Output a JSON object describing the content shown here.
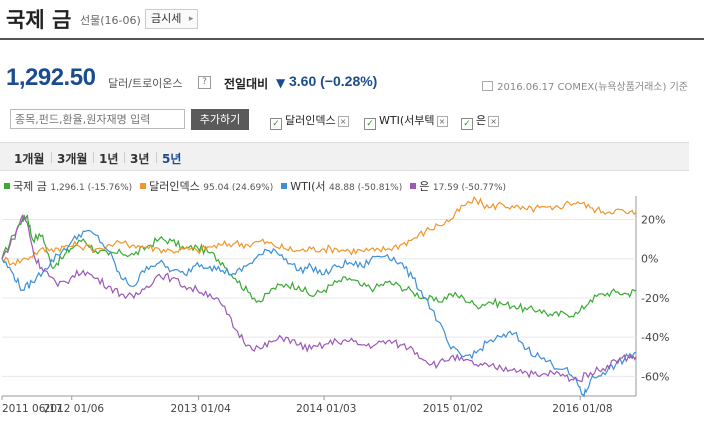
{
  "header": {
    "title": "국제 금",
    "subtitle": "선물(16-06)",
    "button_label": "금시세"
  },
  "quote": {
    "price": "1,292.50",
    "unit": "달러/트로이온스",
    "help": "?",
    "change_label": "전일대비",
    "change_value": "3.60 (−0.28%)",
    "date_note": "2016.06.17 COMEX(뉴욕상품거래소) 기준"
  },
  "compare": {
    "search_placeholder": "종목,펀드,환율,원자재명 입력",
    "add_label": "추가하기",
    "items": [
      "달러인덱스",
      "WTI(서부텍",
      "은"
    ]
  },
  "periods": [
    "1개월",
    "3개월",
    "1년",
    "3년",
    "5년"
  ],
  "active_period": "5년",
  "legend": [
    {
      "name": "국제 금",
      "value": "1,296.1 (-15.76%)",
      "color": "#3aaa35"
    },
    {
      "name": "달러인덱스",
      "value": "95.04 (24.69%)",
      "color": "#f0962a"
    },
    {
      "name": "WTI(서",
      "value": "48.88 (-50.81%)",
      "color": "#3d8fd6"
    },
    {
      "name": "은",
      "value": "17.59 (-50.77%)",
      "color": "#9b59b6"
    }
  ],
  "chart_data": {
    "type": "line",
    "x_ticks": [
      "2011 06/17",
      "2012 01/06",
      "2013 01/04",
      "2014 01/03",
      "2015 01/02",
      "2016 01/08"
    ],
    "y_ticks": [
      "20%",
      "0%",
      "-20%",
      "-40%",
      "-60%"
    ],
    "y_values": [
      20,
      0,
      -20,
      -40,
      -60
    ],
    "ylim": [
      -70,
      32
    ],
    "series": [
      {
        "name": "국제 금",
        "color": "#3aaa35",
        "points": [
          [
            2011.46,
            0
          ],
          [
            2011.55,
            12
          ],
          [
            2011.62,
            20
          ],
          [
            2011.66,
            22
          ],
          [
            2011.7,
            10
          ],
          [
            2011.78,
            12
          ],
          [
            2011.85,
            -4
          ],
          [
            2011.93,
            0
          ],
          [
            2012.0,
            5
          ],
          [
            2012.1,
            10
          ],
          [
            2012.2,
            4
          ],
          [
            2012.3,
            2
          ],
          [
            2012.4,
            3
          ],
          [
            2012.5,
            2
          ],
          [
            2012.6,
            6
          ],
          [
            2012.7,
            10
          ],
          [
            2012.8,
            9
          ],
          [
            2012.9,
            5
          ],
          [
            2013.0,
            6
          ],
          [
            2013.1,
            3
          ],
          [
            2013.2,
            -2
          ],
          [
            2013.3,
            -10
          ],
          [
            2013.4,
            -17
          ],
          [
            2013.5,
            -22
          ],
          [
            2013.6,
            -15
          ],
          [
            2013.7,
            -13
          ],
          [
            2013.8,
            -14
          ],
          [
            2013.9,
            -19
          ],
          [
            2014.0,
            -16
          ],
          [
            2014.1,
            -12
          ],
          [
            2014.2,
            -10
          ],
          [
            2014.3,
            -14
          ],
          [
            2014.4,
            -15
          ],
          [
            2014.5,
            -12
          ],
          [
            2014.6,
            -14
          ],
          [
            2014.7,
            -17
          ],
          [
            2014.8,
            -20
          ],
          [
            2014.9,
            -22
          ],
          [
            2015.0,
            -18
          ],
          [
            2015.1,
            -20
          ],
          [
            2015.2,
            -24
          ],
          [
            2015.3,
            -22
          ],
          [
            2015.4,
            -23
          ],
          [
            2015.5,
            -24
          ],
          [
            2015.6,
            -26
          ],
          [
            2015.7,
            -26
          ],
          [
            2015.8,
            -29
          ],
          [
            2015.9,
            -28
          ],
          [
            2016.0,
            -28
          ],
          [
            2016.1,
            -21
          ],
          [
            2016.2,
            -18
          ],
          [
            2016.3,
            -17
          ],
          [
            2016.4,
            -18
          ],
          [
            2016.46,
            -16
          ]
        ]
      },
      {
        "name": "달러인덱스",
        "color": "#f0962a",
        "points": [
          [
            2011.46,
            0
          ],
          [
            2011.55,
            -2
          ],
          [
            2011.65,
            0
          ],
          [
            2011.75,
            4
          ],
          [
            2011.85,
            5
          ],
          [
            2011.95,
            6
          ],
          [
            2012.05,
            7
          ],
          [
            2012.2,
            5
          ],
          [
            2012.4,
            8
          ],
          [
            2012.5,
            7
          ],
          [
            2012.6,
            6
          ],
          [
            2012.7,
            5
          ],
          [
            2012.8,
            4
          ],
          [
            2012.9,
            5
          ],
          [
            2013.0,
            4
          ],
          [
            2013.1,
            6
          ],
          [
            2013.2,
            7
          ],
          [
            2013.3,
            8
          ],
          [
            2013.4,
            7
          ],
          [
            2013.5,
            9
          ],
          [
            2013.6,
            7
          ],
          [
            2013.7,
            5
          ],
          [
            2013.8,
            4
          ],
          [
            2013.9,
            5
          ],
          [
            2014.0,
            5
          ],
          [
            2014.1,
            5
          ],
          [
            2014.2,
            4
          ],
          [
            2014.3,
            4
          ],
          [
            2014.4,
            4
          ],
          [
            2014.5,
            5
          ],
          [
            2014.6,
            7
          ],
          [
            2014.7,
            10
          ],
          [
            2014.8,
            14
          ],
          [
            2014.9,
            17
          ],
          [
            2015.0,
            20
          ],
          [
            2015.1,
            27
          ],
          [
            2015.2,
            30
          ],
          [
            2015.3,
            26
          ],
          [
            2015.4,
            28
          ],
          [
            2015.5,
            26
          ],
          [
            2015.6,
            25
          ],
          [
            2015.7,
            26
          ],
          [
            2015.8,
            25
          ],
          [
            2015.9,
            28
          ],
          [
            2016.0,
            29
          ],
          [
            2016.1,
            26
          ],
          [
            2016.2,
            24
          ],
          [
            2016.3,
            25
          ],
          [
            2016.4,
            23
          ],
          [
            2016.46,
            24
          ]
        ]
      },
      {
        "name": "WTI(서",
        "color": "#3d8fd6",
        "points": [
          [
            2011.46,
            0
          ],
          [
            2011.55,
            -8
          ],
          [
            2011.62,
            -16
          ],
          [
            2011.7,
            -12
          ],
          [
            2011.8,
            -5
          ],
          [
            2011.9,
            2
          ],
          [
            2012.0,
            8
          ],
          [
            2012.1,
            14
          ],
          [
            2012.2,
            12
          ],
          [
            2012.3,
            4
          ],
          [
            2012.4,
            -10
          ],
          [
            2012.5,
            -14
          ],
          [
            2012.6,
            -4
          ],
          [
            2012.7,
            -2
          ],
          [
            2012.8,
            -6
          ],
          [
            2012.9,
            -8
          ],
          [
            2013.0,
            -2
          ],
          [
            2013.1,
            -4
          ],
          [
            2013.2,
            -6
          ],
          [
            2013.3,
            -8
          ],
          [
            2013.4,
            -3
          ],
          [
            2013.5,
            2
          ],
          [
            2013.6,
            5
          ],
          [
            2013.7,
            0
          ],
          [
            2013.8,
            -6
          ],
          [
            2013.9,
            -4
          ],
          [
            2014.0,
            -8
          ],
          [
            2014.1,
            -4
          ],
          [
            2014.2,
            -2
          ],
          [
            2014.3,
            -4
          ],
          [
            2014.4,
            1
          ],
          [
            2014.5,
            2
          ],
          [
            2014.6,
            -2
          ],
          [
            2014.7,
            -10
          ],
          [
            2014.8,
            -20
          ],
          [
            2014.9,
            -32
          ],
          [
            2015.0,
            -46
          ],
          [
            2015.1,
            -50
          ],
          [
            2015.2,
            -48
          ],
          [
            2015.3,
            -42
          ],
          [
            2015.4,
            -40
          ],
          [
            2015.5,
            -38
          ],
          [
            2015.6,
            -46
          ],
          [
            2015.7,
            -50
          ],
          [
            2015.8,
            -54
          ],
          [
            2015.9,
            -56
          ],
          [
            2016.0,
            -64
          ],
          [
            2016.05,
            -70
          ],
          [
            2016.1,
            -62
          ],
          [
            2016.2,
            -58
          ],
          [
            2016.3,
            -54
          ],
          [
            2016.4,
            -50
          ],
          [
            2016.46,
            -48
          ]
        ]
      },
      {
        "name": "은",
        "color": "#9b59b6",
        "points": [
          [
            2011.46,
            0
          ],
          [
            2011.55,
            10
          ],
          [
            2011.62,
            22
          ],
          [
            2011.66,
            18
          ],
          [
            2011.72,
            0
          ],
          [
            2011.8,
            -6
          ],
          [
            2011.9,
            -14
          ],
          [
            2012.0,
            -10
          ],
          [
            2012.1,
            -6
          ],
          [
            2012.2,
            -10
          ],
          [
            2012.3,
            -14
          ],
          [
            2012.4,
            -18
          ],
          [
            2012.5,
            -20
          ],
          [
            2012.6,
            -14
          ],
          [
            2012.7,
            -8
          ],
          [
            2012.8,
            -10
          ],
          [
            2012.9,
            -14
          ],
          [
            2013.0,
            -16
          ],
          [
            2013.1,
            -18
          ],
          [
            2013.2,
            -24
          ],
          [
            2013.3,
            -36
          ],
          [
            2013.4,
            -44
          ],
          [
            2013.5,
            -46
          ],
          [
            2013.6,
            -42
          ],
          [
            2013.7,
            -40
          ],
          [
            2013.8,
            -44
          ],
          [
            2013.9,
            -46
          ],
          [
            2014.0,
            -44
          ],
          [
            2014.1,
            -42
          ],
          [
            2014.2,
            -42
          ],
          [
            2014.3,
            -44
          ],
          [
            2014.4,
            -44
          ],
          [
            2014.5,
            -42
          ],
          [
            2014.6,
            -44
          ],
          [
            2014.7,
            -46
          ],
          [
            2014.8,
            -52
          ],
          [
            2014.9,
            -54
          ],
          [
            2015.0,
            -50
          ],
          [
            2015.1,
            -52
          ],
          [
            2015.2,
            -54
          ],
          [
            2015.3,
            -55
          ],
          [
            2015.4,
            -56
          ],
          [
            2015.5,
            -56
          ],
          [
            2015.6,
            -58
          ],
          [
            2015.7,
            -60
          ],
          [
            2015.8,
            -58
          ],
          [
            2015.9,
            -60
          ],
          [
            2016.0,
            -62
          ],
          [
            2016.1,
            -58
          ],
          [
            2016.2,
            -56
          ],
          [
            2016.3,
            -52
          ],
          [
            2016.4,
            -50
          ],
          [
            2016.46,
            -50
          ]
        ]
      }
    ]
  }
}
